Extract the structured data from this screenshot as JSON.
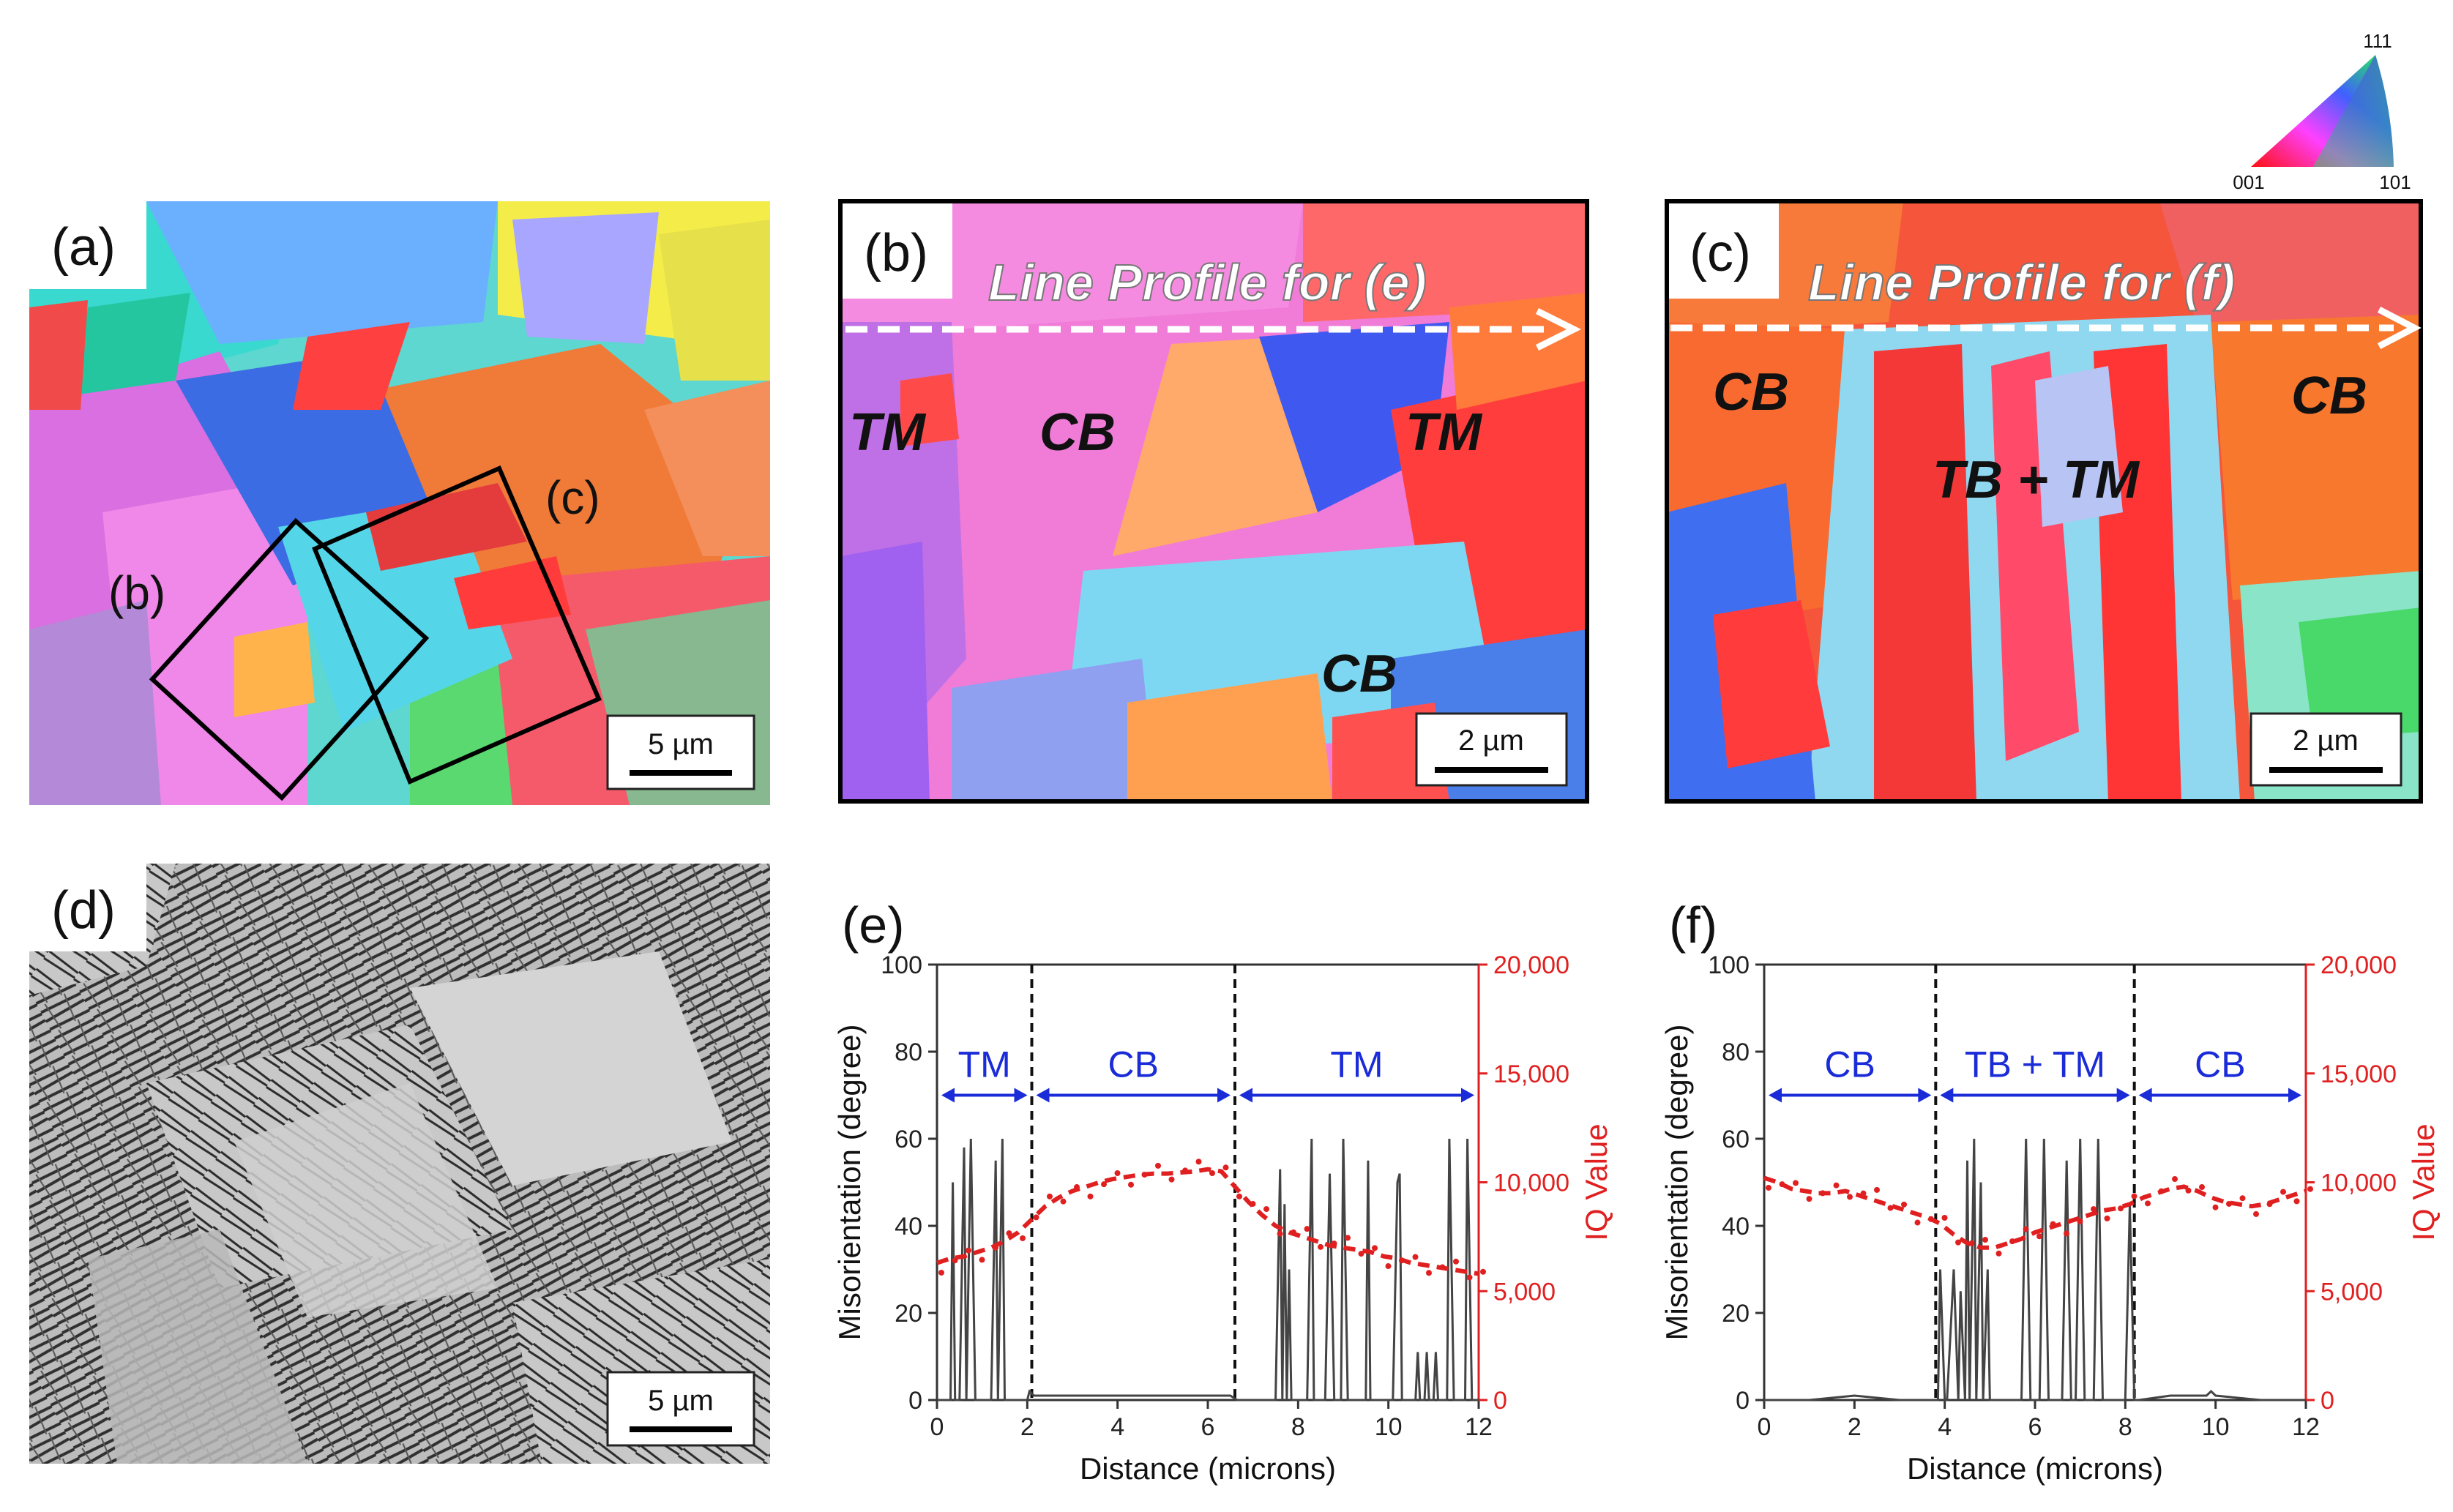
{
  "panels": {
    "a": {
      "tag": "(a)",
      "box_b": "(b)",
      "box_c": "(c)",
      "scale": "5 µm"
    },
    "b": {
      "tag": "(b)",
      "line_profile": "Line Profile for (e)",
      "labels": [
        "TM",
        "CB",
        "TM",
        "CB"
      ],
      "scale": "2 µm"
    },
    "c": {
      "tag": "(c)",
      "line_profile": "Line Profile for (f)",
      "labels": [
        "CB",
        "TB + TM",
        "CB"
      ],
      "scale": "2 µm"
    },
    "d": {
      "tag": "(d)",
      "scale": "5 µm"
    }
  },
  "legend": {
    "c111": "111",
    "c001": "001",
    "c101": "101"
  },
  "chart_data": [
    {
      "type": "line",
      "tag": "(e)",
      "xlabel": "Distance (microns)",
      "ylabel": "Misorientation (degree)",
      "y2label": "IQ Value",
      "xlim": [
        0,
        12
      ],
      "ylim": [
        0,
        100
      ],
      "y2lim": [
        0,
        20000
      ],
      "xticks": [
        "0",
        "2",
        "4",
        "6",
        "8",
        "10",
        "12"
      ],
      "yticks": [
        "0",
        "20",
        "40",
        "60",
        "80",
        "100"
      ],
      "y2ticks": [
        "0",
        "5,000",
        "10,000",
        "15,000",
        "20,000"
      ],
      "dividers": [
        2.1,
        6.6
      ],
      "regions": [
        {
          "label": "TM",
          "from": 0,
          "to": 2.1
        },
        {
          "label": "CB",
          "from": 2.1,
          "to": 6.6
        },
        {
          "label": "TM",
          "from": 6.6,
          "to": 12
        }
      ],
      "misorientation": {
        "x": [
          0,
          0.3,
          0.35,
          0.4,
          0.5,
          0.6,
          0.65,
          0.75,
          0.85,
          1.0,
          1.2,
          1.3,
          1.35,
          1.45,
          1.5,
          1.55,
          1.65,
          1.8,
          2.0,
          2.05,
          2.15,
          2.5,
          3.0,
          4.0,
          5.0,
          6.0,
          6.5,
          6.65,
          6.9,
          7.5,
          7.6,
          7.65,
          7.7,
          7.75,
          7.8,
          7.85,
          8.0,
          8.2,
          8.3,
          8.35,
          8.45,
          8.6,
          8.7,
          8.8,
          8.95,
          9.0,
          9.1,
          9.3,
          9.5,
          9.55,
          9.6,
          9.8,
          10.1,
          10.2,
          10.25,
          10.3,
          10.4,
          10.6,
          10.65,
          10.7,
          10.8,
          10.85,
          10.9,
          11.0,
          11.05,
          11.1,
          11.2,
          11.3,
          11.35,
          11.45,
          11.6,
          11.7,
          11.75,
          11.85,
          12.0
        ],
        "y": [
          0,
          0,
          50,
          0,
          0,
          58,
          0,
          60,
          0,
          0,
          0,
          55,
          0,
          60,
          0,
          0,
          0,
          0,
          0,
          2,
          1,
          1,
          1,
          1,
          1,
          1,
          1,
          0,
          0,
          0,
          53,
          0,
          45,
          0,
          30,
          0,
          0,
          0,
          60,
          0,
          0,
          0,
          52,
          0,
          0,
          60,
          0,
          0,
          0,
          55,
          0,
          0,
          0,
          50,
          52,
          0,
          0,
          0,
          11,
          0,
          0,
          11,
          0,
          0,
          11,
          0,
          0,
          0,
          60,
          0,
          0,
          0,
          60,
          0,
          0
        ]
      },
      "iq": {
        "x": [
          0.0,
          0.3,
          0.6,
          0.9,
          1.2,
          1.5,
          1.8,
          2.1,
          2.4,
          2.7,
          3.0,
          3.3,
          3.6,
          3.9,
          4.2,
          4.5,
          4.8,
          5.1,
          5.4,
          5.7,
          6.0,
          6.3,
          6.6,
          6.9,
          7.2,
          7.5,
          7.8,
          8.1,
          8.4,
          8.7,
          9.0,
          9.3,
          9.6,
          9.9,
          10.2,
          10.5,
          10.8,
          11.1,
          11.4,
          11.7,
          12.0
        ],
        "y": [
          6300,
          6500,
          6600,
          6800,
          7000,
          7300,
          7700,
          8300,
          8900,
          9300,
          9600,
          9800,
          10000,
          10150,
          10250,
          10350,
          10400,
          10400,
          10450,
          10500,
          10600,
          10500,
          9800,
          9100,
          8500,
          8000,
          7700,
          7500,
          7300,
          7100,
          7000,
          6900,
          6800,
          6600,
          6500,
          6300,
          6200,
          6100,
          6000,
          5900,
          5800
        ]
      }
    },
    {
      "type": "line",
      "tag": "(f)",
      "xlabel": "Distance (microns)",
      "ylabel": "Misorientation (degree)",
      "y2label": "IQ Value",
      "xlim": [
        0,
        12
      ],
      "ylim": [
        0,
        100
      ],
      "y2lim": [
        0,
        20000
      ],
      "xticks": [
        "0",
        "2",
        "4",
        "6",
        "8",
        "10",
        "12"
      ],
      "yticks": [
        "0",
        "20",
        "40",
        "60",
        "80",
        "100"
      ],
      "y2ticks": [
        "0",
        "5,000",
        "10,000",
        "15,000",
        "20,000"
      ],
      "dividers": [
        3.8,
        8.2
      ],
      "regions": [
        {
          "label": "CB",
          "from": 0,
          "to": 3.8
        },
        {
          "label": "TB + TM",
          "from": 3.8,
          "to": 8.2
        },
        {
          "label": "CB",
          "from": 8.2,
          "to": 12
        }
      ],
      "misorientation": {
        "x": [
          0,
          1.0,
          2.0,
          3.0,
          3.7,
          3.85,
          3.9,
          4.0,
          4.05,
          4.2,
          4.3,
          4.35,
          4.45,
          4.5,
          4.55,
          4.65,
          4.7,
          4.8,
          4.85,
          4.95,
          5.0,
          5.1,
          5.2,
          5.7,
          5.8,
          5.9,
          6.1,
          6.2,
          6.3,
          6.6,
          6.7,
          6.8,
          6.9,
          7.0,
          7.1,
          7.3,
          7.4,
          7.5,
          7.7,
          8.0,
          8.1,
          8.2,
          8.3,
          9.0,
          9.8,
          9.9,
          10.0,
          11.0,
          12.0
        ],
        "y": [
          0,
          0,
          1,
          0,
          0,
          0,
          30,
          0,
          0,
          30,
          0,
          25,
          0,
          55,
          0,
          60,
          0,
          50,
          0,
          30,
          0,
          0,
          0,
          0,
          60,
          0,
          0,
          60,
          0,
          0,
          55,
          0,
          0,
          60,
          0,
          0,
          60,
          0,
          0,
          0,
          45,
          0,
          0,
          1,
          1,
          2,
          1,
          0,
          0
        ]
      },
      "iq": {
        "x": [
          0.0,
          0.3,
          0.6,
          0.9,
          1.2,
          1.5,
          1.8,
          2.1,
          2.4,
          2.7,
          3.0,
          3.3,
          3.6,
          3.9,
          4.2,
          4.5,
          4.8,
          5.1,
          5.4,
          5.7,
          6.0,
          6.3,
          6.6,
          6.9,
          7.2,
          7.5,
          7.8,
          8.1,
          8.4,
          8.7,
          9.0,
          9.3,
          9.6,
          9.9,
          10.2,
          10.5,
          10.8,
          11.1,
          11.4,
          11.7,
          12.0
        ],
        "y": [
          10200,
          10000,
          9700,
          9600,
          9500,
          9500,
          9600,
          9400,
          9200,
          9000,
          8800,
          8600,
          8400,
          8100,
          7600,
          7200,
          7000,
          7000,
          7200,
          7400,
          7700,
          7900,
          8100,
          8300,
          8500,
          8700,
          8800,
          9000,
          9300,
          9500,
          9700,
          9800,
          9600,
          9300,
          9100,
          9000,
          8900,
          9000,
          9200,
          9400,
          9600
        ]
      }
    }
  ]
}
